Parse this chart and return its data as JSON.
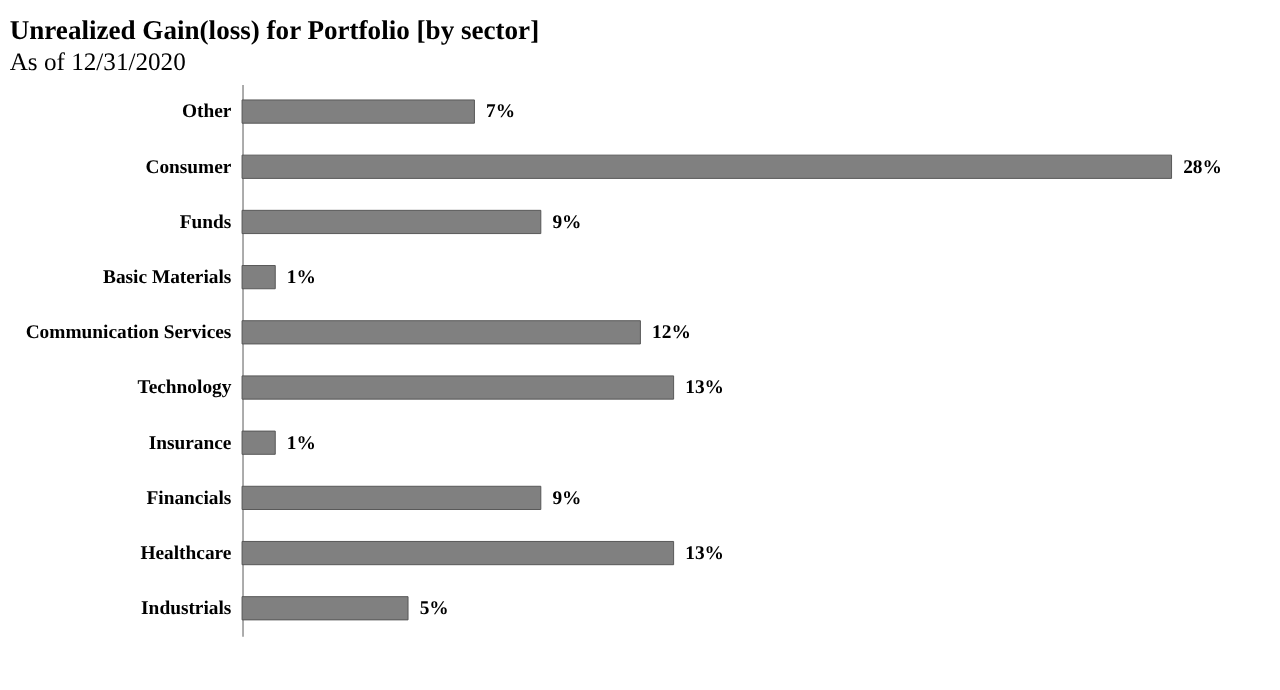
{
  "chart_data": {
    "type": "bar",
    "orientation": "horizontal",
    "title": "Unrealized Gain(loss) for Portfolio [by sector]",
    "subtitle": "As of 12/31/2020",
    "categories": [
      "Other",
      "Consumer",
      "Funds",
      "Basic Materials",
      "Communication Services",
      "Technology",
      "Insurance",
      "Financials",
      "Healthcare",
      "Industrials"
    ],
    "values": [
      7,
      28,
      9,
      1,
      12,
      13,
      1,
      9,
      13,
      5
    ],
    "value_labels": [
      "7%",
      "28%",
      "9%",
      "1%",
      "12%",
      "13%",
      "1%",
      "9%",
      "13%",
      "5%"
    ],
    "color": "#808080"
  }
}
